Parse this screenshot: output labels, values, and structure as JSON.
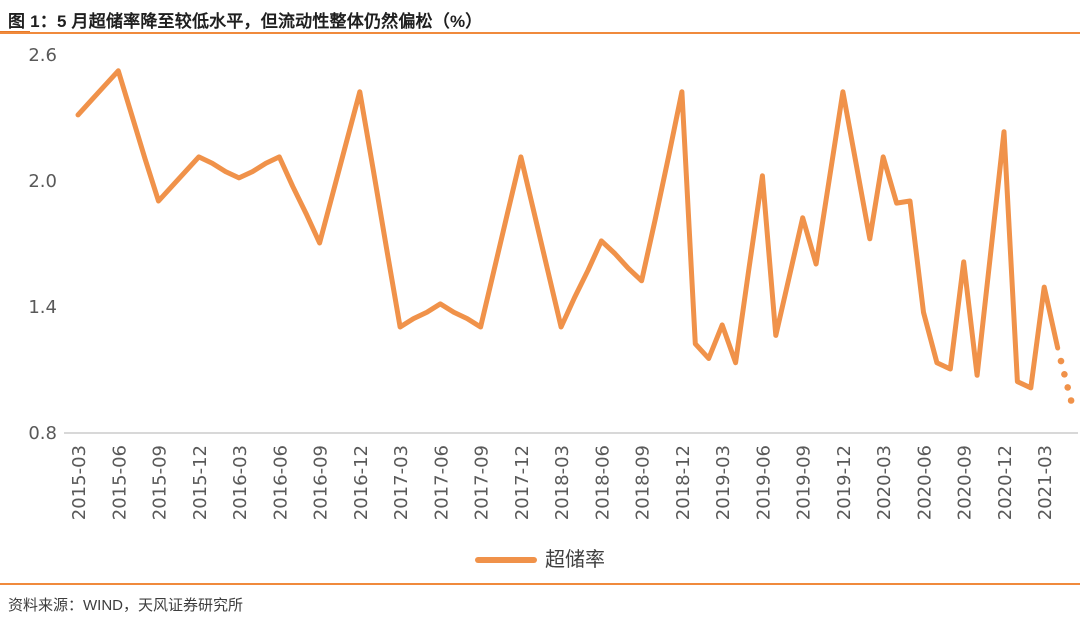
{
  "header": {
    "title": "图 1：5 月超储率降至较低水平，但流动性整体仍然偏松（%）"
  },
  "legend": {
    "label": "超储率"
  },
  "footer": {
    "source": "资料来源：WIND，天风证券研究所"
  },
  "colors": {
    "line": "#F0924A",
    "divider": "#F08A3C",
    "axis_label": "#595959",
    "baseline": "#D8D8D8",
    "title_text": "#1F1F1F",
    "source_text": "#3D3D3D"
  },
  "chart_data": {
    "type": "line",
    "title": "图 1：5 月超储率降至较低水平，但流动性整体仍然偏松（%）",
    "unit": "%",
    "grid": false,
    "legend_position": "bottom",
    "ylim": [
      0.8,
      2.6
    ],
    "y_ticks": [
      2.6,
      2.0,
      1.4,
      0.8
    ],
    "x_tick_labels": [
      "2015-03",
      "2015-06",
      "2015-09",
      "2015-12",
      "2016-03",
      "2016-06",
      "2016-09",
      "2016-12",
      "2017-03",
      "2017-06",
      "2017-09",
      "2017-12",
      "2018-03",
      "2018-06",
      "2018-09",
      "2018-12",
      "2019-03",
      "2019-06",
      "2019-09",
      "2019-12",
      "2020-03",
      "2020-06",
      "2020-09",
      "2020-12",
      "2021-03"
    ],
    "x_tick_interval_months": 3,
    "series": [
      {
        "name": "超储率",
        "x": [
          "2015-03",
          "2015-04",
          "2015-05",
          "2015-06",
          "2015-07",
          "2015-08",
          "2015-09",
          "2015-10",
          "2015-11",
          "2015-12",
          "2016-01",
          "2016-02",
          "2016-03",
          "2016-04",
          "2016-05",
          "2016-06",
          "2016-07",
          "2016-08",
          "2016-09",
          "2016-10",
          "2016-11",
          "2016-12",
          "2017-01",
          "2017-02",
          "2017-03",
          "2017-04",
          "2017-05",
          "2017-06",
          "2017-07",
          "2017-08",
          "2017-09",
          "2017-10",
          "2017-11",
          "2017-12",
          "2018-01",
          "2018-02",
          "2018-03",
          "2018-04",
          "2018-05",
          "2018-06",
          "2018-07",
          "2018-08",
          "2018-09",
          "2018-10",
          "2018-11",
          "2018-12",
          "2019-01",
          "2019-02",
          "2019-03",
          "2019-04",
          "2019-05",
          "2019-06",
          "2019-07",
          "2019-08",
          "2019-09",
          "2019-10",
          "2019-11",
          "2019-12",
          "2020-01",
          "2020-02",
          "2020-03",
          "2020-04",
          "2020-05",
          "2020-06",
          "2020-07",
          "2020-08",
          "2020-09",
          "2020-10",
          "2020-11",
          "2020-12",
          "2021-01",
          "2021-02",
          "2021-03",
          "2021-04",
          "2021-05"
        ],
        "values": [
          2.31,
          2.38,
          2.45,
          2.52,
          2.31,
          2.1,
          1.9,
          1.97,
          2.04,
          2.11,
          2.08,
          2.04,
          2.01,
          2.04,
          2.08,
          2.11,
          1.97,
          1.84,
          1.7,
          1.94,
          2.18,
          2.42,
          2.05,
          1.67,
          1.3,
          1.34,
          1.37,
          1.41,
          1.37,
          1.34,
          1.3,
          1.57,
          1.84,
          2.11,
          1.84,
          1.57,
          1.3,
          1.44,
          1.57,
          1.71,
          1.65,
          1.58,
          1.52,
          1.81,
          2.11,
          2.42,
          1.22,
          1.15,
          1.31,
          1.13,
          1.58,
          2.02,
          1.26,
          1.54,
          1.82,
          1.6,
          2.01,
          2.42,
          2.07,
          1.72,
          2.11,
          1.89,
          1.9,
          1.37,
          1.13,
          1.1,
          1.61,
          1.07,
          1.65,
          2.23,
          1.04,
          1.01,
          1.49,
          1.2,
          0.95
        ],
        "dotted_last_segment": true,
        "dotted_segment_range": [
          "2021-04",
          "2021-05"
        ]
      }
    ]
  }
}
